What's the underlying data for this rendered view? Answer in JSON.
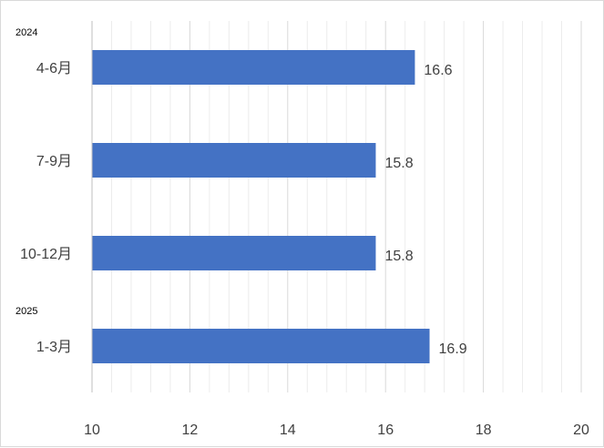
{
  "chart_data": {
    "type": "bar",
    "orientation": "horizontal",
    "categories": [
      "4-6月",
      "7-9月",
      "10-12月",
      "1-3月"
    ],
    "category_groups": [
      {
        "label": "2024",
        "categories": [
          "4-6月",
          "7-9月",
          "10-12月"
        ]
      },
      {
        "label": "2025",
        "categories": [
          "1-3月"
        ]
      }
    ],
    "values": [
      16.6,
      15.8,
      15.8,
      16.9
    ],
    "data_labels": [
      "16.6",
      "15.8",
      "15.8",
      "16.9"
    ],
    "xlim": [
      10,
      20
    ],
    "x_ticks": [
      "10",
      "12",
      "14",
      "16",
      "18",
      "20"
    ],
    "title": "",
    "xlabel": "",
    "ylabel": "",
    "grid": {
      "major": true,
      "minor": true
    },
    "legend": "none",
    "colors": {
      "bar": "#4472c4",
      "grid_major": "#d9d9d9",
      "grid_minor": "#ececec",
      "axis": "#bfbfbf",
      "text": "#404040"
    }
  }
}
